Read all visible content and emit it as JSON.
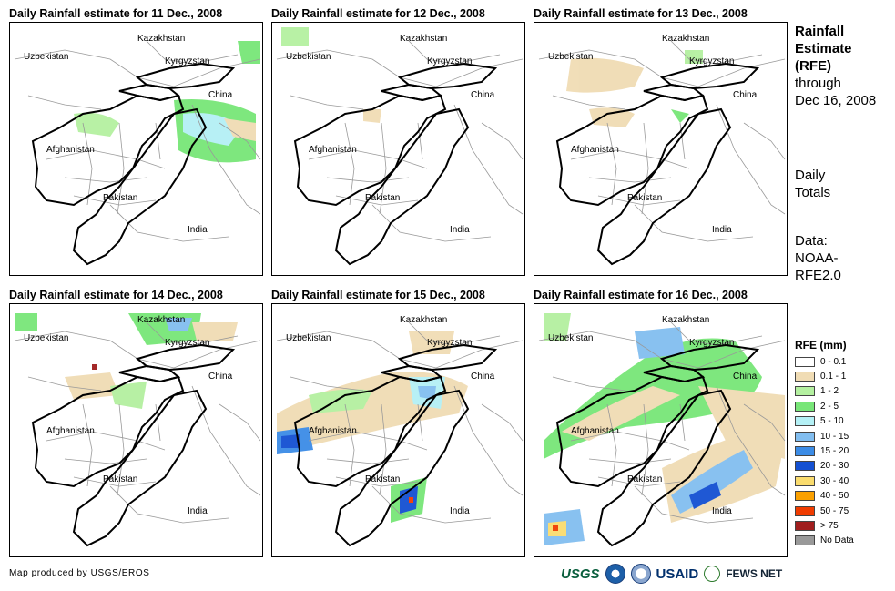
{
  "panels": [
    {
      "title": "Daily Rainfall estimate for 11 Dec., 2008"
    },
    {
      "title": "Daily Rainfall estimate for 12 Dec., 2008"
    },
    {
      "title": "Daily Rainfall estimate for 13 Dec., 2008"
    },
    {
      "title": "Daily Rainfall estimate for 14 Dec., 2008"
    },
    {
      "title": "Daily Rainfall estimate for 15 Dec., 2008"
    },
    {
      "title": "Daily Rainfall estimate for 16 Dec., 2008"
    }
  ],
  "map_labels": {
    "kazakhstan": "Kazakhstan",
    "uzbekistan": "Uzbekistan",
    "kyrgyzstan": "Kyrgyzstan",
    "china": "China",
    "afghanistan": "Afghanistan",
    "pakistan": "Pakistan",
    "india": "India"
  },
  "side": {
    "title_l1": "Rainfall",
    "title_l2": "Estimate",
    "title_l3": "(RFE)",
    "through": "through",
    "date": "Dec 16, 2008",
    "daily": "Daily",
    "totals": "Totals",
    "data": "Data:",
    "source_l1": "NOAA-",
    "source_l2": "RFE2.0"
  },
  "legend": {
    "title": "RFE (mm)",
    "items": [
      {
        "label": "0 - 0.1",
        "color": "#ffffff"
      },
      {
        "label": "0.1 - 1",
        "color": "#f0dcb4"
      },
      {
        "label": "1 - 2",
        "color": "#b4f0a0"
      },
      {
        "label": "2 - 5",
        "color": "#78e678"
      },
      {
        "label": "5 - 10",
        "color": "#b4f0f5"
      },
      {
        "label": "10 - 15",
        "color": "#82bef0"
      },
      {
        "label": "15 - 20",
        "color": "#3c8ce6"
      },
      {
        "label": "20 - 30",
        "color": "#1450d2"
      },
      {
        "label": "30 - 40",
        "color": "#fadc6e"
      },
      {
        "label": "40 - 50",
        "color": "#faa000"
      },
      {
        "label": "50 - 75",
        "color": "#f03c00"
      },
      {
        "label": "> 75",
        "color": "#a01e1e"
      },
      {
        "label": "No Data",
        "color": "#999999"
      }
    ]
  },
  "credit": "Map produced by USGS/EROS",
  "logos": {
    "usgs": "USGS",
    "usaid": "USAID",
    "fews": "FEWS NET"
  }
}
